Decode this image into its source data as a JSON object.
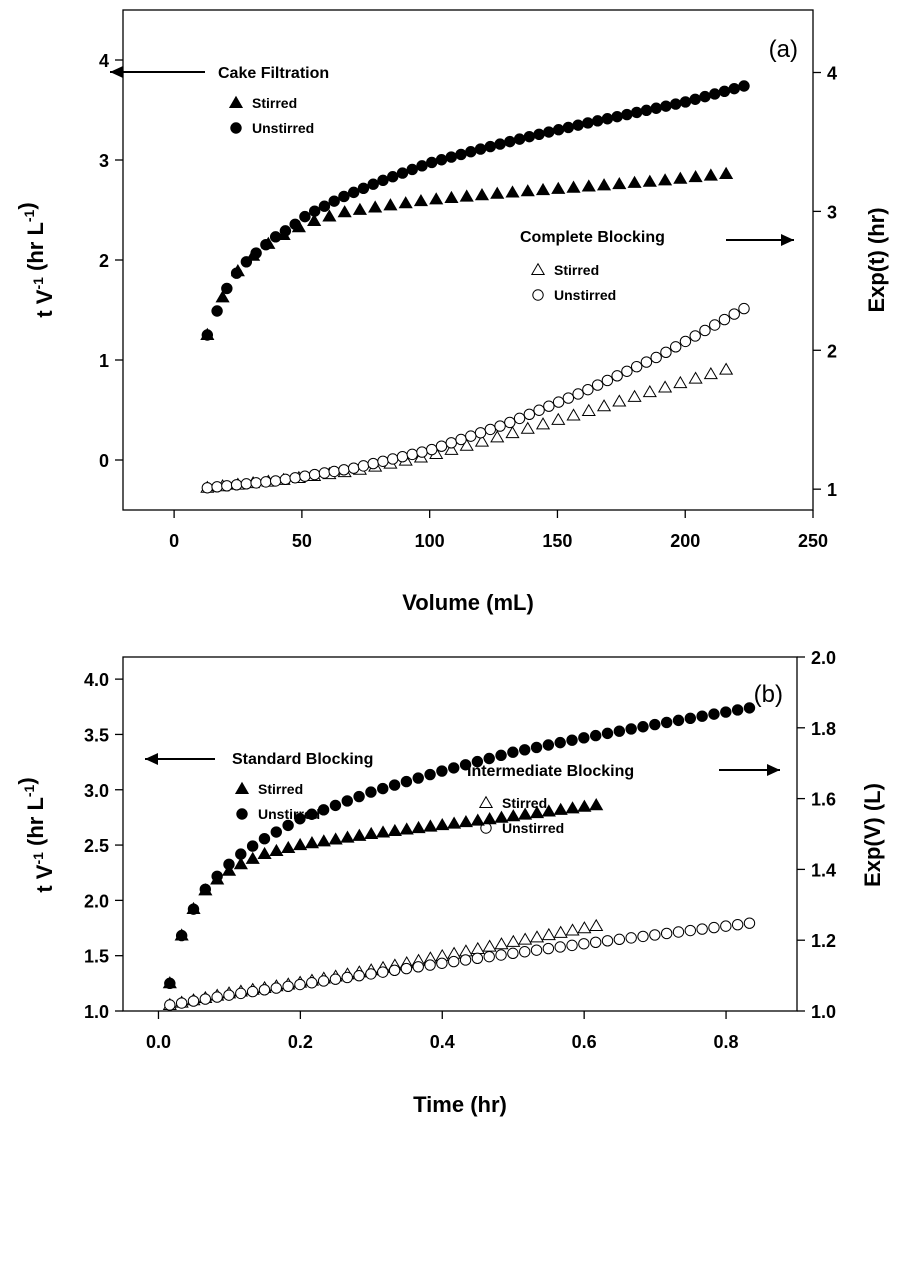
{
  "chart_data": [
    {
      "type": "scatter",
      "panel_label": "(a)",
      "xlabel": "Volume (mL)",
      "ylabel_left": "t V-1 (hr L-1)",
      "ylabel_right": "Exp(t) (hr)",
      "xlim": [
        -20,
        250
      ],
      "ylim_left": [
        -0.5,
        4.5
      ],
      "ylim_right": [
        0.85,
        4.45
      ],
      "xticks": [
        0,
        50,
        100,
        150,
        200,
        250
      ],
      "yticks_left": [
        0,
        1,
        2,
        3,
        4
      ],
      "yticks_right": [
        1,
        2,
        3,
        4
      ],
      "left_group": {
        "title": "Cake Filtration",
        "arrow": "left",
        "series": [
          {
            "name": "Stirred",
            "marker": "filled-triangle",
            "axis": "left",
            "x_start": 13,
            "x_end": 216,
            "count": 35,
            "anchors": [
              [
                13,
                1.25
              ],
              [
                20,
                1.69
              ],
              [
                26,
                1.93
              ],
              [
                33,
                2.09
              ],
              [
                39,
                2.2
              ],
              [
                46,
                2.29
              ],
              [
                52,
                2.37
              ],
              [
                59,
                2.42
              ],
              [
                65,
                2.47
              ],
              [
                80,
                2.53
              ],
              [
                100,
                2.6
              ],
              [
                130,
                2.67
              ],
              [
                160,
                2.73
              ],
              [
                190,
                2.79
              ],
              [
                216,
                2.86
              ]
            ]
          },
          {
            "name": "Unstirred",
            "marker": "filled-circle",
            "axis": "left",
            "x_start": 13,
            "x_end": 223,
            "count": 56,
            "anchors": [
              [
                13,
                1.25
              ],
              [
                20,
                1.69
              ],
              [
                26,
                1.93
              ],
              [
                33,
                2.09
              ],
              [
                39,
                2.22
              ],
              [
                46,
                2.33
              ],
              [
                52,
                2.45
              ],
              [
                59,
                2.54
              ],
              [
                65,
                2.62
              ],
              [
                80,
                2.78
              ],
              [
                100,
                2.97
              ],
              [
                120,
                3.11
              ],
              [
                140,
                3.24
              ],
              [
                160,
                3.36
              ],
              [
                180,
                3.47
              ],
              [
                200,
                3.58
              ],
              [
                223,
                3.74
              ]
            ]
          }
        ]
      },
      "right_group": {
        "title": "Complete Blocking",
        "arrow": "right",
        "series": [
          {
            "name": "Stirred",
            "marker": "open-triangle",
            "axis": "right",
            "x_start": 13,
            "x_end": 216,
            "count": 35,
            "anchors": [
              [
                13,
                1.01
              ],
              [
                40,
                1.06
              ],
              [
                70,
                1.13
              ],
              [
                100,
                1.24
              ],
              [
                130,
                1.39
              ],
              [
                160,
                1.55
              ],
              [
                190,
                1.72
              ],
              [
                216,
                1.86
              ]
            ]
          },
          {
            "name": "Unstirred",
            "marker": "open-circle",
            "axis": "right",
            "x_start": 13,
            "x_end": 223,
            "count": 56,
            "anchors": [
              [
                13,
                1.01
              ],
              [
                40,
                1.06
              ],
              [
                70,
                1.15
              ],
              [
                100,
                1.28
              ],
              [
                130,
                1.47
              ],
              [
                160,
                1.7
              ],
              [
                190,
                1.96
              ],
              [
                223,
                2.3
              ]
            ]
          }
        ]
      }
    },
    {
      "type": "scatter",
      "panel_label": "(b)",
      "xlabel": "Time (hr)",
      "ylabel_left": "t V-1 (hr L-1)",
      "ylabel_right": "Exp(V) (L)",
      "xlim": [
        -0.05,
        0.9
      ],
      "ylim_left": [
        1.0,
        4.2
      ],
      "ylim_right": [
        1.0,
        2.0
      ],
      "xticks": [
        0.0,
        0.2,
        0.4,
        0.6,
        0.8
      ],
      "yticks_left": [
        1.0,
        1.5,
        2.0,
        2.5,
        3.0,
        3.5,
        4.0
      ],
      "yticks_right": [
        1.0,
        1.2,
        1.4,
        1.6,
        1.8,
        2.0
      ],
      "left_group": {
        "title": "Standard Blocking",
        "arrow": "left",
        "series": [
          {
            "name": "Stirred",
            "marker": "filled-triangle",
            "axis": "left",
            "x_start": 0.016,
            "x_end": 0.617,
            "count": 37,
            "anchors": [
              [
                0.016,
                1.25
              ],
              [
                0.033,
                1.69
              ],
              [
                0.05,
                1.93
              ],
              [
                0.066,
                2.09
              ],
              [
                0.083,
                2.19
              ],
              [
                0.1,
                2.27
              ],
              [
                0.12,
                2.34
              ],
              [
                0.15,
                2.42
              ],
              [
                0.2,
                2.5
              ],
              [
                0.3,
                2.6
              ],
              [
                0.4,
                2.68
              ],
              [
                0.5,
                2.76
              ],
              [
                0.617,
                2.86
              ]
            ]
          },
          {
            "name": "Unstirred",
            "marker": "filled-circle",
            "axis": "left",
            "x_start": 0.016,
            "x_end": 0.833,
            "count": 50,
            "anchors": [
              [
                0.016,
                1.25
              ],
              [
                0.033,
                1.69
              ],
              [
                0.05,
                1.93
              ],
              [
                0.066,
                2.1
              ],
              [
                0.083,
                2.22
              ],
              [
                0.1,
                2.33
              ],
              [
                0.12,
                2.44
              ],
              [
                0.15,
                2.56
              ],
              [
                0.2,
                2.74
              ],
              [
                0.3,
                2.98
              ],
              [
                0.4,
                3.17
              ],
              [
                0.5,
                3.34
              ],
              [
                0.6,
                3.47
              ],
              [
                0.7,
                3.59
              ],
              [
                0.833,
                3.74
              ]
            ]
          }
        ]
      },
      "right_group": {
        "title": "Intermediate Blocking",
        "arrow": "right",
        "series": [
          {
            "name": "Stirred",
            "marker": "open-triangle",
            "axis": "right",
            "x_start": 0.016,
            "x_end": 0.617,
            "count": 37,
            "anchors": [
              [
                0.016,
                1.017
              ],
              [
                0.1,
                1.05
              ],
              [
                0.2,
                1.08
              ],
              [
                0.3,
                1.115
              ],
              [
                0.4,
                1.155
              ],
              [
                0.5,
                1.195
              ],
              [
                0.617,
                1.24
              ]
            ]
          },
          {
            "name": "Unstirred",
            "marker": "open-circle",
            "axis": "right",
            "x_start": 0.016,
            "x_end": 0.833,
            "count": 50,
            "anchors": [
              [
                0.016,
                1.017
              ],
              [
                0.1,
                1.045
              ],
              [
                0.2,
                1.075
              ],
              [
                0.3,
                1.105
              ],
              [
                0.4,
                1.135
              ],
              [
                0.5,
                1.163
              ],
              [
                0.6,
                1.19
              ],
              [
                0.7,
                1.215
              ],
              [
                0.833,
                1.248
              ]
            ]
          }
        ]
      }
    }
  ]
}
